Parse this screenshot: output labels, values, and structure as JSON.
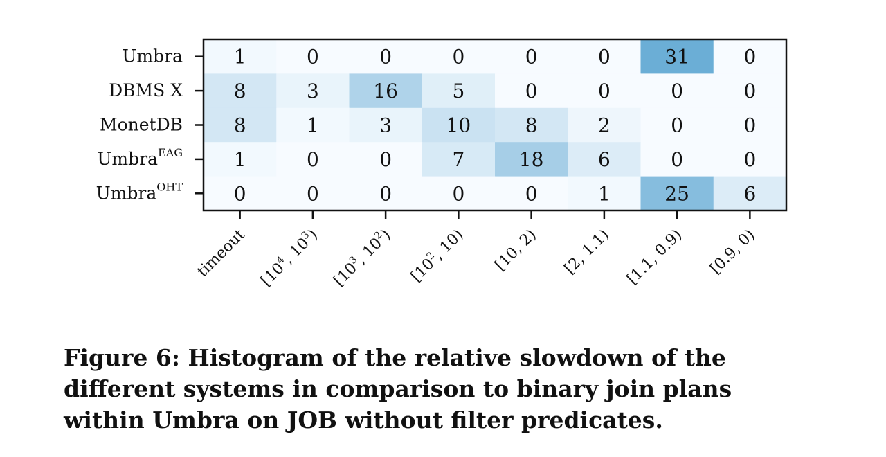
{
  "chart_data": {
    "type": "heatmap",
    "rows": [
      {
        "base": "Umbra",
        "sup": ""
      },
      {
        "base": "DBMS X",
        "sup": ""
      },
      {
        "base": "MonetDB",
        "sup": ""
      },
      {
        "base": "Umbra",
        "sup": "EAG"
      },
      {
        "base": "Umbra",
        "sup": "OHT"
      }
    ],
    "columns": [
      {
        "parts": [
          {
            "t": "timeout"
          }
        ]
      },
      {
        "parts": [
          {
            "t": "[10"
          },
          {
            "t": "4",
            "sup": true
          },
          {
            "t": ", 10"
          },
          {
            "t": "3",
            "sup": true
          },
          {
            "t": ")"
          }
        ]
      },
      {
        "parts": [
          {
            "t": "[10"
          },
          {
            "t": "3",
            "sup": true
          },
          {
            "t": ", 10"
          },
          {
            "t": "2",
            "sup": true
          },
          {
            "t": ")"
          }
        ]
      },
      {
        "parts": [
          {
            "t": "[10"
          },
          {
            "t": "2",
            "sup": true
          },
          {
            "t": ", 10)"
          }
        ]
      },
      {
        "parts": [
          {
            "t": "[10, 2)"
          }
        ]
      },
      {
        "parts": [
          {
            "t": "[2, 1.1)"
          }
        ]
      },
      {
        "parts": [
          {
            "t": "[1.1, 0.9)"
          }
        ]
      },
      {
        "parts": [
          {
            "t": "[0.9, 0)"
          }
        ]
      }
    ],
    "values": [
      [
        1,
        0,
        0,
        0,
        0,
        0,
        31,
        0
      ],
      [
        8,
        3,
        16,
        5,
        0,
        0,
        0,
        0
      ],
      [
        8,
        1,
        3,
        10,
        8,
        2,
        0,
        0
      ],
      [
        1,
        0,
        0,
        7,
        18,
        6,
        0,
        0
      ],
      [
        0,
        0,
        0,
        0,
        0,
        1,
        25,
        6
      ]
    ],
    "vmin": 0,
    "vmax": 31,
    "colormap": "Blues",
    "color_low": "#f7fbff",
    "color_high": "#6baed6"
  },
  "caption": "Figure 6: Histogram of the relative slowdown of the different systems in comparison to binary join plans within Umbra on JOB without filter predicates."
}
